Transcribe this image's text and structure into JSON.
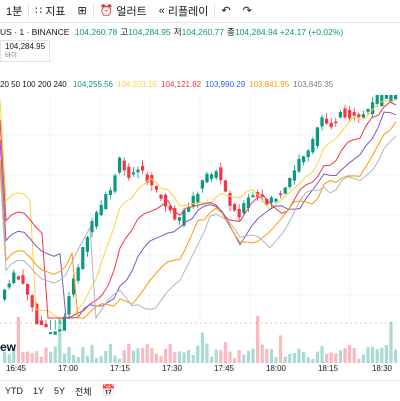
{
  "toolbar": {
    "interval": "1분",
    "indicators": "지표",
    "alert": "얼러트",
    "replay": "리플레이"
  },
  "symbol": {
    "title": "US · 1 · BINANCE",
    "ohlc": [
      {
        "label": "",
        "value": "104,260.78",
        "color": "#089981"
      },
      {
        "label": "고",
        "value": "104,284.95",
        "color": "#089981"
      },
      {
        "label": "저",
        "value": "104,260.77",
        "color": "#089981"
      },
      {
        "label": "종",
        "value": "104,284.94",
        "color": "#089981"
      }
    ],
    "change": "+24.17 (+0.02%)",
    "change_color": "#089981",
    "price_tag": "104,284.95",
    "price_tag_sub": "바이"
  },
  "ma": {
    "lengths": "20 50 100 200 240",
    "values": [
      {
        "value": "104,255.56",
        "color": "#089981"
      },
      {
        "value": "104,203.15",
        "color": "#f5d442"
      },
      {
        "value": "104,121.82",
        "color": "#f23645"
      },
      {
        "value": "103,990.29",
        "color": "#2962ff"
      },
      {
        "value": "103,841.95",
        "color": "#ff9800"
      },
      {
        "value": "103,845.35",
        "color": "#787b86"
      }
    ]
  },
  "xaxis": [
    {
      "label": "16:45",
      "frac": 0.04
    },
    {
      "label": "17:00",
      "frac": 0.17
    },
    {
      "label": "17:15",
      "frac": 0.3
    },
    {
      "label": "17:30",
      "frac": 0.43
    },
    {
      "label": "17:45",
      "frac": 0.56
    },
    {
      "label": "18:00",
      "frac": 0.69
    },
    {
      "label": "18:15",
      "frac": 0.82
    },
    {
      "label": "18:30",
      "frac": 0.955
    }
  ],
  "bottombar": {
    "ranges": [
      "YTD",
      "1Y",
      "5Y",
      "전체"
    ],
    "watermark": "ew"
  },
  "colors": {
    "up": "#089981",
    "down": "#f23645"
  }
}
